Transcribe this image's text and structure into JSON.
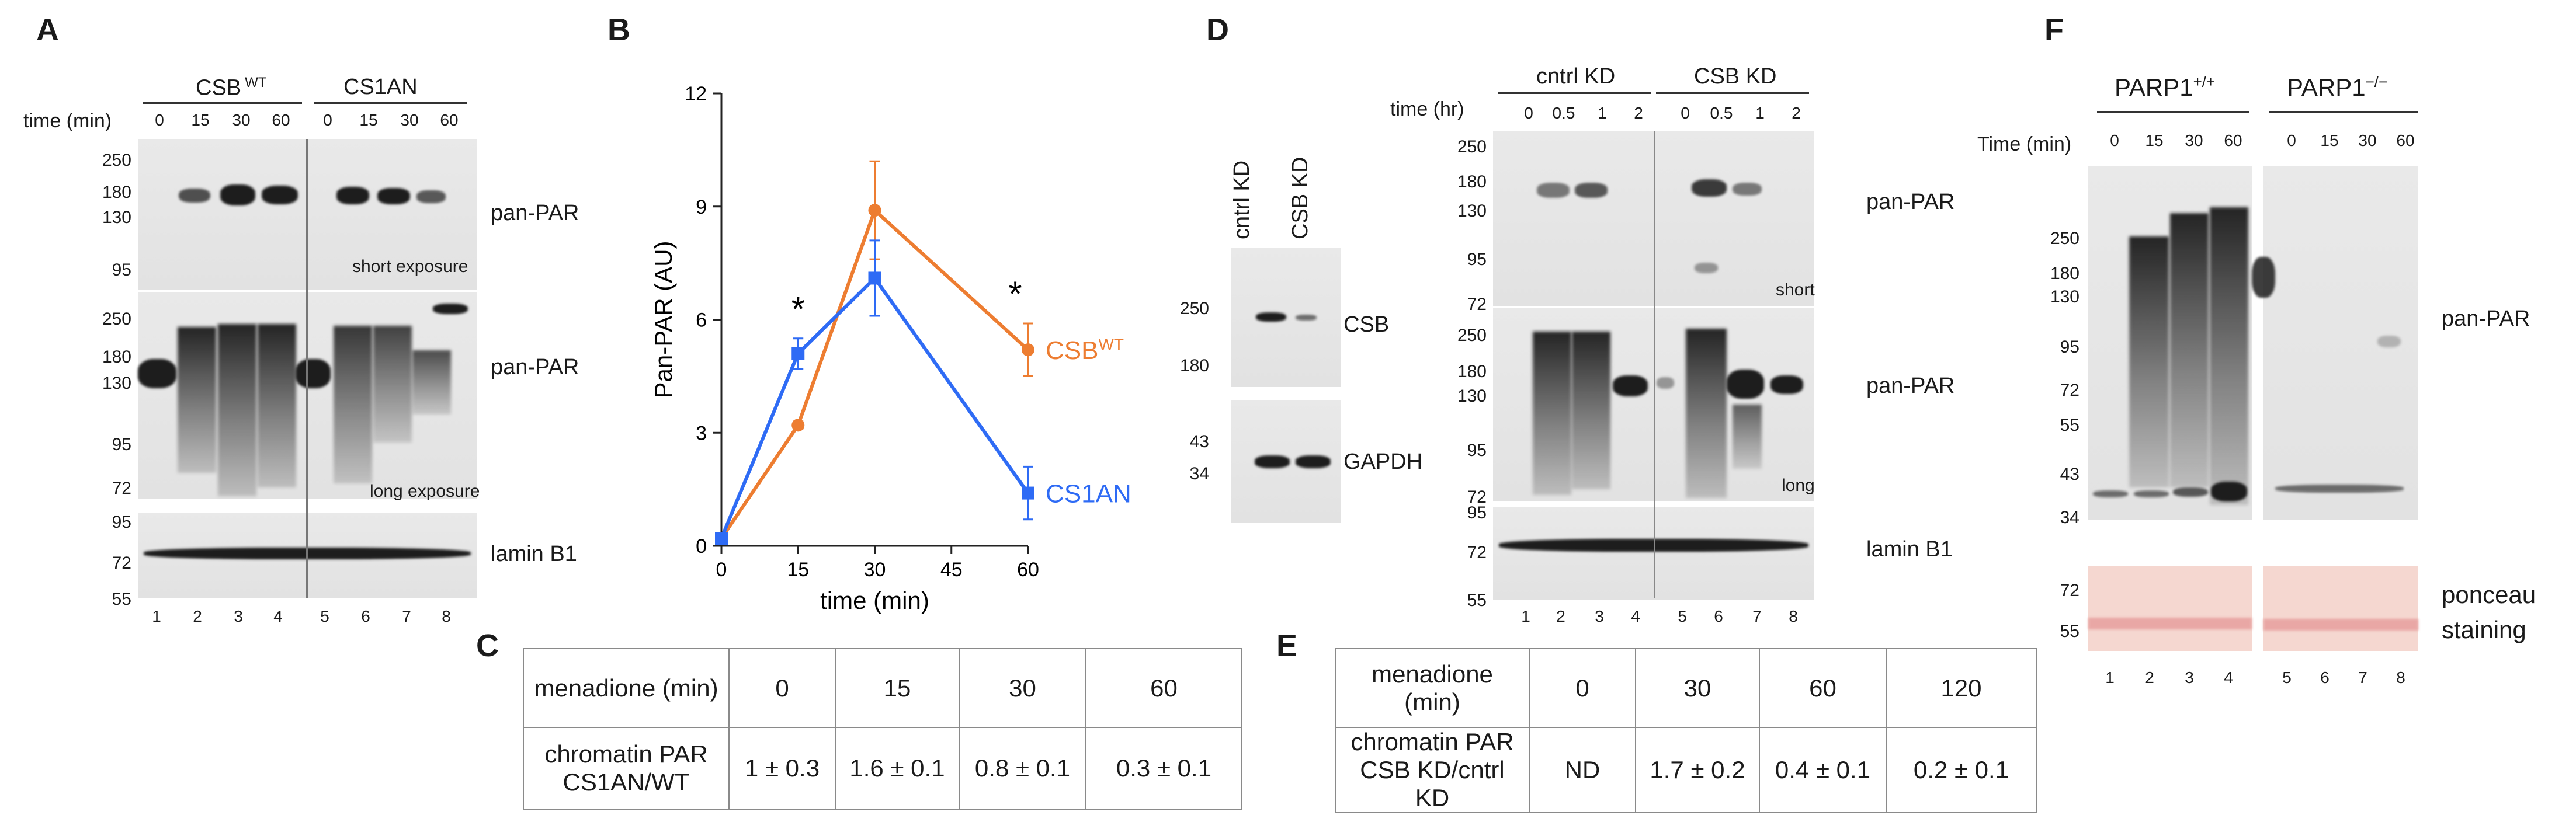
{
  "panels": {
    "A": "A",
    "B": "B",
    "C": "C",
    "D": "D",
    "E": "E",
    "F": "F"
  },
  "panel_a": {
    "group1": "CSB",
    "group1_sup": "WT",
    "group2": "CS1AN",
    "time_label": "time (min)",
    "times": [
      "0",
      "15",
      "30",
      "60",
      "0",
      "15",
      "30",
      "60"
    ],
    "blot1_label": "pan-PAR",
    "blot1_note": "short exposure",
    "blot1_ticks": [
      "250",
      "180",
      "130",
      "95"
    ],
    "blot2_label": "pan-PAR",
    "blot2_note": "long exposure",
    "blot2_ticks": [
      "250",
      "180",
      "130",
      "95",
      "72"
    ],
    "blot3_label": "lamin B1",
    "blot3_ticks": [
      "95",
      "72",
      "55"
    ],
    "lanes": [
      "1",
      "2",
      "3",
      "4",
      "5",
      "6",
      "7",
      "8"
    ]
  },
  "panel_c": {
    "row1": [
      "menadione (min)",
      "0",
      "15",
      "30",
      "60"
    ],
    "row2": [
      "chromatin PAR CS1AN/WT",
      "1 ± 0.3",
      "1.6 ± 0.1",
      "0.8 ± 0.1",
      "0.3 ± 0.1"
    ]
  },
  "panel_d": {
    "left_lanes": [
      "cntrl KD",
      "CSB KD"
    ],
    "left_blot1_label": "CSB",
    "left_blot1_ticks": [
      "250",
      "180"
    ],
    "left_blot2_label": "GAPDH",
    "left_blot2_ticks": [
      "43",
      "34"
    ],
    "group1": "cntrl KD",
    "group2": "CSB KD",
    "time_label": "time (hr)",
    "times": [
      "0",
      "0.5",
      "1",
      "2",
      "0",
      "0.5",
      "1",
      "2"
    ],
    "blot1_label": "pan-PAR",
    "blot1_note": "short",
    "blot1_ticks": [
      "250",
      "180",
      "130",
      "95",
      "72"
    ],
    "blot2_label": "pan-PAR",
    "blot2_note": "long",
    "blot2_ticks": [
      "250",
      "180",
      "130",
      "95",
      "72"
    ],
    "blot3_label": "lamin B1",
    "blot3_ticks": [
      "95",
      "72",
      "55"
    ],
    "lanes": [
      "1",
      "2",
      "3",
      "4",
      "5",
      "6",
      "7",
      "8"
    ]
  },
  "panel_e": {
    "row1": [
      "menadione (min)",
      "0",
      "30",
      "60",
      "120"
    ],
    "row2": [
      "chromatin PAR CSB KD/cntrl KD",
      "ND",
      "1.7 ± 0.2",
      "0.4 ± 0.1",
      "0.2 ± 0.1"
    ]
  },
  "panel_f": {
    "group1": "PARP1",
    "group1_sup": "+/+",
    "group2": "PARP1",
    "group2_sup": "−/−",
    "time_label": "Time (min)",
    "times": [
      "0",
      "15",
      "30",
      "60",
      "0",
      "15",
      "30",
      "60"
    ],
    "blot_label": "pan-PAR",
    "blot_ticks": [
      "250",
      "180",
      "130",
      "95",
      "72",
      "55",
      "43",
      "34"
    ],
    "ponceau_ticks": [
      "72",
      "55"
    ],
    "ponceau_label_1": "ponceau",
    "ponceau_label_2": "staining",
    "lanes": [
      "1",
      "2",
      "3",
      "4",
      "5",
      "6",
      "7",
      "8"
    ]
  },
  "chart_data": {
    "type": "line",
    "title": "",
    "xlabel": "time (min)",
    "ylabel": "Pan-PAR (AU)",
    "x": [
      0,
      15,
      30,
      60
    ],
    "xticks": [
      "0",
      "15",
      "30",
      "45",
      "60"
    ],
    "yticks": [
      "0",
      "3",
      "6",
      "9",
      "12"
    ],
    "xlim": [
      0,
      60
    ],
    "ylim": [
      0,
      12
    ],
    "series": [
      {
        "name": "CSB",
        "name_sup": "WT",
        "color": "#ED7D31",
        "values": [
          0.2,
          3.2,
          8.9,
          5.2
        ],
        "errors": [
          0.1,
          0.1,
          1.3,
          0.7
        ]
      },
      {
        "name": "CS1AN",
        "color": "#2E6BF5",
        "values": [
          0.2,
          5.1,
          7.1,
          1.4
        ],
        "errors": [
          0.1,
          0.4,
          1.0,
          0.7
        ]
      }
    ],
    "significance": [
      {
        "x": 15,
        "label": "*"
      },
      {
        "x": 60,
        "label": "*"
      }
    ]
  }
}
